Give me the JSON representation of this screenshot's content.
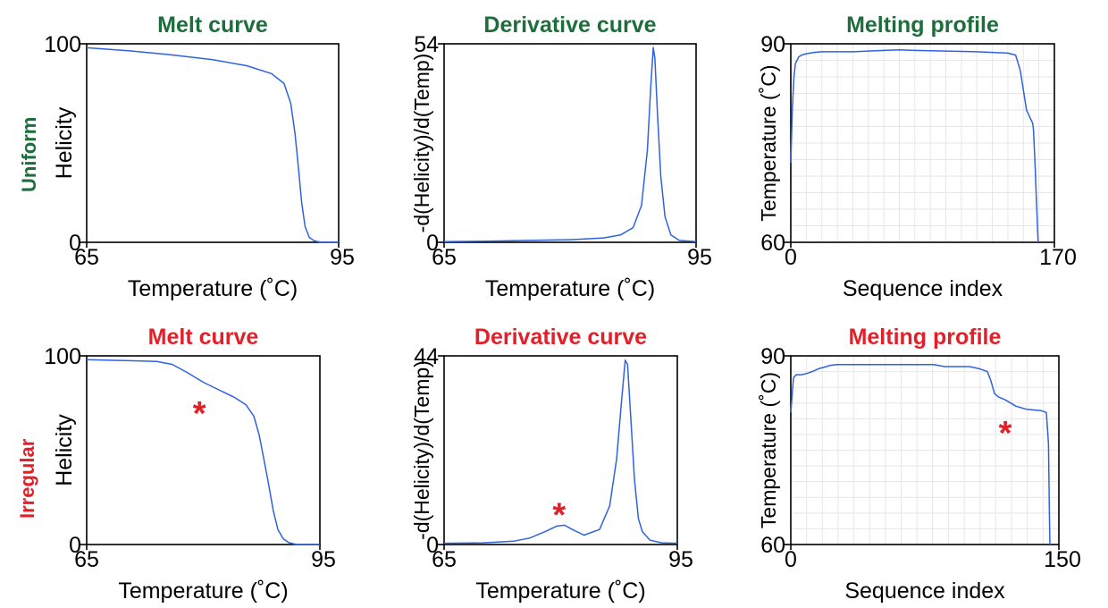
{
  "colors": {
    "green": "#1e6e3c",
    "red": "#e2202a",
    "line": "#2f62e0",
    "grid": "#e6e6ec",
    "axis": "#000000"
  },
  "rows": [
    {
      "label": "Uniform",
      "color": "#1e6e3c"
    },
    {
      "label": "Irregular",
      "color": "#e2202a"
    }
  ],
  "chart_data": [
    {
      "type": "line",
      "row": 0,
      "col": 0,
      "title": "Melt curve",
      "title_color": "#1e6e3c",
      "xlabel": "Temperature (˚C)",
      "ylabel": "Helicity",
      "xlim": [
        65,
        95
      ],
      "ylim": [
        0,
        100
      ],
      "xticks": [
        "65",
        "95"
      ],
      "yticks": [
        "0",
        "100"
      ],
      "grid": false,
      "series": [
        {
          "x": [
            65,
            70,
            75,
            80,
            84,
            87,
            88.5,
            89.3,
            89.8,
            90.2,
            90.6,
            91,
            91.5,
            92,
            92.5,
            93,
            95
          ],
          "y": [
            98,
            96.5,
            94.5,
            92,
            89,
            85,
            80,
            70,
            55,
            38,
            20,
            8,
            2.5,
            1,
            0.3,
            0,
            0
          ]
        }
      ],
      "annotations": []
    },
    {
      "type": "line",
      "row": 0,
      "col": 1,
      "title": "Derivative curve",
      "title_color": "#1e6e3c",
      "xlabel": "Temperature (˚C)",
      "ylabel": "-d(Helicity)/d(Temp)",
      "xlim": [
        65,
        95
      ],
      "ylim": [
        0,
        54
      ],
      "xticks": [
        "65",
        "95"
      ],
      "yticks": [
        "0",
        "54"
      ],
      "grid": false,
      "series": [
        {
          "x": [
            65,
            70,
            75,
            80,
            84,
            86,
            87.5,
            88.5,
            89.2,
            89.6,
            89.9,
            90.1,
            90.4,
            90.8,
            91.3,
            92,
            93,
            95
          ],
          "y": [
            0.2,
            0.3,
            0.5,
            0.7,
            1.2,
            2,
            4,
            10,
            25,
            42,
            53,
            50,
            35,
            18,
            7,
            2,
            0.5,
            0.2
          ]
        }
      ],
      "annotations": []
    },
    {
      "type": "line",
      "row": 0,
      "col": 2,
      "title": "Melting profile",
      "title_color": "#1e6e3c",
      "xlabel": "Sequence index",
      "ylabel": "Temperature (˚C)",
      "xlim": [
        0,
        170
      ],
      "ylim": [
        60,
        90
      ],
      "xticks": [
        "0",
        "170"
      ],
      "yticks": [
        "60",
        "90"
      ],
      "grid": true,
      "series": [
        {
          "x": [
            0,
            1,
            2,
            3,
            5,
            7,
            10,
            15,
            20,
            40,
            60,
            70,
            80,
            100,
            120,
            140,
            145,
            148,
            150,
            152,
            154,
            156,
            156.5,
            157.5,
            158.5,
            159.5
          ],
          "y": [
            72,
            80,
            85,
            87,
            88,
            88.3,
            88.5,
            88.7,
            88.8,
            88.8,
            89,
            89.1,
            89,
            88.9,
            88.8,
            88.6,
            88.3,
            86,
            83,
            80,
            79,
            78,
            77,
            72,
            66,
            60
          ]
        }
      ],
      "annotations": []
    },
    {
      "type": "line",
      "row": 1,
      "col": 0,
      "title": "Melt curve",
      "title_color": "#e2202a",
      "xlabel": "Temperature (˚C)",
      "ylabel": "Helicity",
      "xlim": [
        65,
        95
      ],
      "ylim": [
        0,
        100
      ],
      "xticks": [
        "65",
        "95"
      ],
      "yticks": [
        "0",
        "100"
      ],
      "grid": false,
      "series": [
        {
          "x": [
            65,
            70,
            74,
            76,
            78,
            80,
            82,
            84,
            85.5,
            86.5,
            87.2,
            87.8,
            88.4,
            89,
            89.6,
            90.3,
            91,
            92,
            95
          ],
          "y": [
            98,
            97.5,
            97,
            95.5,
            91,
            86,
            82,
            78,
            74,
            68,
            58,
            45,
            32,
            18,
            8,
            3,
            1,
            0,
            0
          ]
        }
      ],
      "annotations": [
        {
          "text": "*",
          "x": 79.5,
          "y": 72
        }
      ]
    },
    {
      "type": "line",
      "row": 1,
      "col": 1,
      "title": "Derivative curve",
      "title_color": "#e2202a",
      "xlabel": "Temperature (˚C)",
      "ylabel": "-d(Helicity)/d(Temp)",
      "xlim": [
        65,
        95
      ],
      "ylim": [
        0,
        44
      ],
      "xticks": [
        "65",
        "95"
      ],
      "yticks": [
        "0",
        "44"
      ],
      "grid": false,
      "series": [
        {
          "x": [
            65,
            70,
            74,
            76,
            78,
            79.5,
            80.5,
            81.5,
            83,
            85,
            86.3,
            87.2,
            87.8,
            88.3,
            88.6,
            89,
            89.5,
            90,
            90.5,
            91.5,
            93,
            95
          ],
          "y": [
            0.3,
            0.4,
            0.8,
            1.5,
            3,
            4.3,
            4.5,
            3.5,
            2.2,
            3.5,
            9,
            20,
            33,
            43,
            42,
            30,
            15,
            6,
            3,
            1,
            0.4,
            0.3
          ]
        }
      ],
      "annotations": [
        {
          "text": "*",
          "x": 79.8,
          "y": 8
        }
      ]
    },
    {
      "type": "line",
      "row": 1,
      "col": 2,
      "title": "Melting profile",
      "title_color": "#e2202a",
      "xlabel": "Sequence index",
      "ylabel": "Temperature (˚C)",
      "xlim": [
        0,
        150
      ],
      "ylim": [
        60,
        90
      ],
      "xticks": [
        "0",
        "150"
      ],
      "yticks": [
        "60",
        "90"
      ],
      "grid": true,
      "series": [
        {
          "x": [
            0,
            1.5,
            3,
            6,
            9,
            12,
            16,
            20,
            22,
            26,
            80,
            86,
            100,
            105,
            110,
            112,
            114,
            116,
            120,
            126,
            132,
            140,
            143,
            144.2,
            144.7,
            145
          ],
          "y": [
            81,
            86.5,
            87,
            87,
            87.2,
            87.5,
            88,
            88.3,
            88.5,
            88.6,
            88.6,
            88.3,
            88.3,
            88,
            87.5,
            86,
            84,
            83.5,
            83,
            82,
            81.5,
            81.3,
            81,
            76,
            65,
            60
          ]
        }
      ],
      "annotations": [
        {
          "text": "*",
          "x": 120,
          "y": 78.5
        }
      ]
    }
  ]
}
